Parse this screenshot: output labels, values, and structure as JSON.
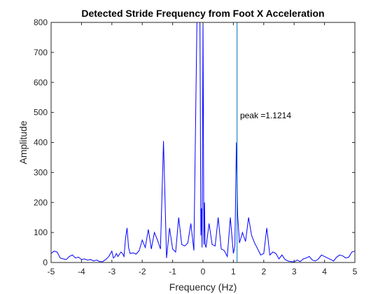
{
  "chart_data": {
    "type": "line",
    "title": "Detected Stride Frequency from Foot X Acceleration",
    "xlabel": "Frequency (Hz)",
    "ylabel": "Amplitude",
    "xlim": [
      -5,
      5
    ],
    "ylim": [
      0,
      800
    ],
    "xticks": [
      -5,
      -4,
      -3,
      -2,
      -1,
      0,
      1,
      2,
      3,
      4,
      5
    ],
    "yticks": [
      0,
      100,
      200,
      300,
      400,
      500,
      600,
      700,
      800
    ],
    "grid": false,
    "series_color": "#0000ff",
    "peak_line_color": "#0072bd",
    "series": [
      {
        "x": [
          -5.0,
          -4.9,
          -4.8,
          -4.7,
          -4.6,
          -4.5,
          -4.4,
          -4.3,
          -4.2,
          -4.1,
          -4.0,
          -3.9,
          -3.8,
          -3.7,
          -3.6,
          -3.5,
          -3.4,
          -3.3,
          -3.2,
          -3.1,
          -3.0,
          -2.95,
          -2.9,
          -2.85,
          -2.8,
          -2.7,
          -2.65,
          -2.6,
          -2.55,
          -2.5,
          -2.45,
          -2.4,
          -2.3,
          -2.2,
          -2.1,
          -2.0,
          -1.9,
          -1.8,
          -1.7,
          -1.6,
          -1.5,
          -1.4,
          -1.3,
          -1.2,
          -1.1,
          -1.0,
          -0.9,
          -0.8,
          -0.7,
          -0.6,
          -0.5,
          -0.4,
          -0.3,
          -0.2,
          -0.1,
          -0.07,
          -0.05,
          -0.03,
          0.0,
          0.03,
          0.05,
          0.07,
          0.1,
          0.2,
          0.3,
          0.4,
          0.5,
          0.6,
          0.7,
          0.8,
          0.9,
          1.0,
          1.05,
          1.1,
          1.12,
          1.14,
          1.2,
          1.3,
          1.4,
          1.5,
          1.6,
          1.7,
          1.8,
          1.9,
          2.0,
          2.1,
          2.2,
          2.3,
          2.4,
          2.5,
          2.6,
          2.7,
          2.8,
          2.9,
          3.0,
          3.1,
          3.2,
          3.3,
          3.4,
          3.5,
          3.6,
          3.7,
          3.8,
          3.9,
          4.0,
          4.1,
          4.2,
          4.3,
          4.4,
          4.5,
          4.6,
          4.7,
          4.8,
          4.9,
          5.0
        ],
        "y": [
          30,
          38,
          35,
          15,
          12,
          10,
          20,
          25,
          15,
          18,
          10,
          12,
          8,
          10,
          5,
          8,
          3,
          3,
          10,
          20,
          38,
          15,
          20,
          30,
          20,
          35,
          30,
          20,
          80,
          115,
          50,
          30,
          32,
          28,
          40,
          75,
          50,
          110,
          45,
          100,
          75,
          45,
          405,
          15,
          115,
          45,
          35,
          150,
          60,
          55,
          65,
          130,
          40,
          800,
          800,
          90,
          180,
          50,
          800,
          60,
          200,
          60,
          50,
          130,
          60,
          55,
          150,
          45,
          40,
          20,
          150,
          30,
          55,
          400,
          270,
          160,
          65,
          100,
          70,
          150,
          90,
          65,
          45,
          25,
          30,
          115,
          25,
          35,
          30,
          12,
          25,
          10,
          5,
          3,
          2,
          8,
          3,
          12,
          15,
          20,
          8,
          5,
          12,
          25,
          20,
          15,
          10,
          5,
          18,
          25,
          22,
          15,
          18,
          35,
          38
        ]
      }
    ],
    "peak_x": 1.1214,
    "annotation": "peak =1.1214",
    "annotation_x": 1.22,
    "annotation_y": 490
  }
}
